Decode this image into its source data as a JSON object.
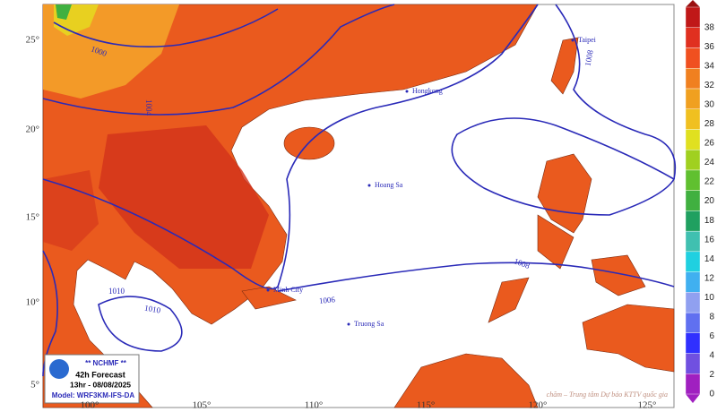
{
  "map": {
    "lon_labels": [
      "100°",
      "105°",
      "110°",
      "115°",
      "120°",
      "125°"
    ],
    "lat_labels": [
      "25°",
      "20°",
      "15°",
      "10°",
      "5°"
    ],
    "colorbar": {
      "ticks": [
        0,
        2,
        4,
        6,
        8,
        10,
        12,
        14,
        16,
        18,
        20,
        22,
        24,
        26,
        28,
        30,
        32,
        34,
        36,
        38
      ],
      "colors": [
        "#a020c0",
        "#7050e0",
        "#3030ff",
        "#6070f0",
        "#90a0f0",
        "#40b0f0",
        "#20d0e0",
        "#40c0b0",
        "#20a060",
        "#40b040",
        "#60c030",
        "#a0d020",
        "#e0e020",
        "#f0c020",
        "#f0a020",
        "#f08020",
        "#f05020",
        "#e03020",
        "#c01818"
      ]
    },
    "places": [
      "Taipei",
      "Hongkong",
      "Hoang Sa",
      "Truong Sa",
      "Minh City"
    ],
    "isobars": [
      "1000",
      "1004",
      "1008",
      "1008",
      "1006",
      "1010",
      "1010"
    ],
    "legend": {
      "org": "** NCHMF **",
      "forecast": "42h Forecast",
      "time": "13hr - 08/08/2025",
      "model": "Model: WRF3KM-IFS-DA"
    },
    "footer": "chăm – Trung tâm Dự báo KTTV quốc gia"
  }
}
